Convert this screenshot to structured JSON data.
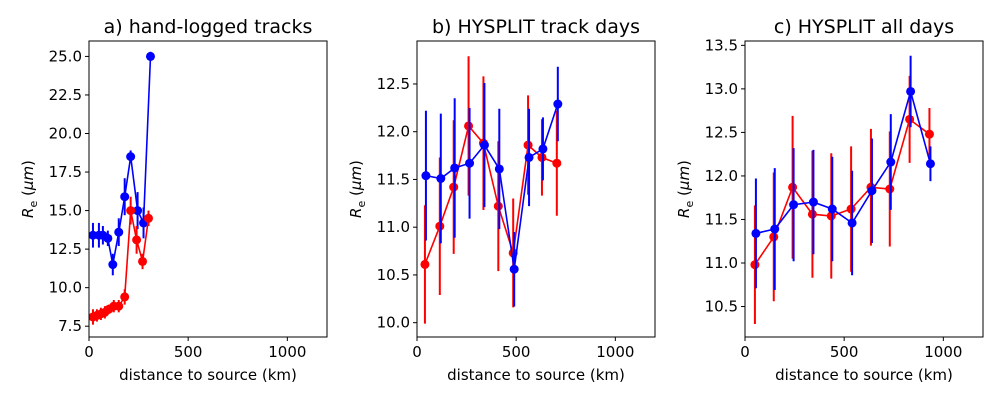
{
  "figure": {
    "ylabel_sub": "e",
    "ylabel_units": "μm"
  },
  "chart_data": [
    {
      "type": "line",
      "title": "a) hand-logged tracks",
      "xlabel": "distance to source (km)",
      "ylabel": "R",
      "xlim": [
        0,
        1200
      ],
      "ylim": [
        6.8,
        26.0
      ],
      "xticks": [
        0,
        500,
        1000
      ],
      "yticks": [
        7.5,
        10.0,
        12.5,
        15.0,
        17.5,
        20.0,
        22.5,
        25.0
      ],
      "ytick_labels": [
        "7.5",
        "10.0",
        "12.5",
        "15.0",
        "17.5",
        "20.0",
        "22.5",
        "25.0"
      ],
      "series": [
        {
          "name": "blue",
          "color": "#0000ff",
          "x": [
            20,
            50,
            70,
            95,
            120,
            150,
            180,
            210,
            245,
            275,
            310
          ],
          "y": [
            13.4,
            13.4,
            13.4,
            13.2,
            11.5,
            13.6,
            15.9,
            18.5,
            15.0,
            14.2,
            25.0
          ],
          "err": [
            0.8,
            0.8,
            0.6,
            0.5,
            0.7,
            0.9,
            1.2,
            0.4,
            1.2,
            1.0,
            0.3
          ]
        },
        {
          "name": "red",
          "color": "#ff0000",
          "x": [
            20,
            40,
            60,
            80,
            100,
            125,
            150,
            180,
            210,
            240,
            270,
            300
          ],
          "y": [
            8.1,
            8.2,
            8.3,
            8.4,
            8.6,
            8.8,
            8.8,
            9.4,
            15.0,
            13.1,
            11.7,
            14.5
          ],
          "err": [
            0.5,
            0.4,
            0.4,
            0.4,
            0.3,
            0.4,
            0.4,
            0.5,
            0.9,
            0.9,
            0.5,
            0.5
          ]
        }
      ]
    },
    {
      "type": "line",
      "title": "b) HYSPLIT track days",
      "xlabel": "distance to source (km)",
      "ylabel": "R",
      "xlim": [
        0,
        1200
      ],
      "ylim": [
        9.85,
        12.95
      ],
      "xticks": [
        0,
        500,
        1000
      ],
      "yticks": [
        10.0,
        10.5,
        11.0,
        11.5,
        12.0,
        12.5
      ],
      "ytick_labels": [
        "10.0",
        "10.5",
        "11.0",
        "11.5",
        "12.0",
        "12.5"
      ],
      "series": [
        {
          "name": "red",
          "color": "#ff0000",
          "x": [
            40,
            115,
            185,
            260,
            335,
            410,
            485,
            560,
            630,
            705
          ],
          "y": [
            10.61,
            11.01,
            11.42,
            12.06,
            11.88,
            11.22,
            10.73,
            11.86,
            11.73,
            11.67
          ],
          "err": [
            0.62,
            0.72,
            0.7,
            0.73,
            0.7,
            0.68,
            0.57,
            0.52,
            0.4,
            0.55
          ]
        },
        {
          "name": "blue",
          "color": "#0000ff",
          "x": [
            45,
            120,
            190,
            265,
            340,
            415,
            490,
            565,
            635,
            710
          ],
          "y": [
            11.54,
            11.51,
            11.62,
            11.67,
            11.86,
            11.61,
            10.56,
            11.73,
            11.82,
            12.29
          ],
          "err": [
            0.68,
            0.68,
            0.73,
            0.58,
            0.65,
            0.63,
            0.39,
            0.51,
            0.33,
            0.39
          ]
        }
      ]
    },
    {
      "type": "line",
      "title": "c) HYSPLIT all days",
      "xlabel": "distance to source (km)",
      "ylabel": "R",
      "xlim": [
        0,
        1200
      ],
      "ylim": [
        10.15,
        13.55
      ],
      "xticks": [
        0,
        500,
        1000
      ],
      "yticks": [
        10.5,
        11.0,
        11.5,
        12.0,
        12.5,
        13.0,
        13.5
      ],
      "ytick_labels": [
        "10.5",
        "11.0",
        "11.5",
        "12.0",
        "12.5",
        "13.0",
        "13.5"
      ],
      "series": [
        {
          "name": "red",
          "color": "#ff0000",
          "x": [
            50,
            145,
            240,
            340,
            435,
            535,
            635,
            730,
            830,
            930
          ],
          "y": [
            10.98,
            11.3,
            11.87,
            11.56,
            11.54,
            11.62,
            11.87,
            11.85,
            12.65,
            12.48
          ],
          "err": [
            0.68,
            0.74,
            0.82,
            0.73,
            0.72,
            0.72,
            0.67,
            0.66,
            0.5,
            0.3
          ]
        },
        {
          "name": "blue",
          "color": "#0000ff",
          "x": [
            55,
            150,
            245,
            345,
            440,
            540,
            640,
            735,
            835,
            935
          ],
          "y": [
            11.34,
            11.39,
            11.67,
            11.7,
            11.62,
            11.46,
            11.83,
            12.16,
            12.97,
            12.14
          ],
          "err": [
            0.63,
            0.7,
            0.65,
            0.6,
            0.6,
            0.6,
            0.6,
            0.55,
            0.41,
            0.2
          ]
        }
      ]
    }
  ]
}
